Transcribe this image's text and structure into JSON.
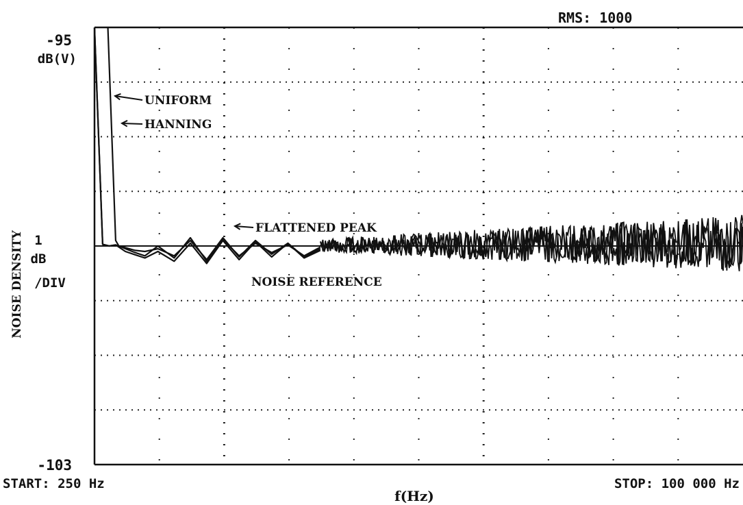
{
  "chart_data": {
    "type": "line",
    "title": "",
    "xlabel": "f(Hz)",
    "ylabel": "NOISE DENSITY",
    "xlim": [
      250,
      100000
    ],
    "ylim": [
      -103,
      -95
    ],
    "grid": true,
    "texts": {
      "rms": "RMS: 1000",
      "y_top": "-95",
      "y_top_unit": "dB(V)",
      "y_bottom": "-103",
      "scale_num": "1",
      "scale_unit1": "dB",
      "scale_unit2": "/DIV",
      "start": "START: 250 Hz",
      "stop": "STOP: 100 000 Hz"
    },
    "annotations": [
      {
        "text": "UNIFORM",
        "target": "uniform"
      },
      {
        "text": "HANNING",
        "target": "hanning"
      },
      {
        "text": "FLATTENED PEAK",
        "target": "flattened"
      },
      {
        "text": "NOISE  REFERENCE",
        "target": "reference"
      }
    ],
    "reference_level": -99.0,
    "series": [
      {
        "id": "uniform",
        "points": [
          [
            250,
            -95.0
          ],
          [
            1500,
            -98.97
          ],
          [
            2500,
            -99.0
          ],
          [
            3500,
            -98.98
          ],
          [
            4000,
            -99.0
          ],
          [
            5000,
            -99.03
          ],
          [
            6500,
            -99.08
          ],
          [
            8000,
            -99.1
          ],
          [
            10000,
            -99.05
          ],
          [
            12500,
            -99.18
          ],
          [
            15000,
            -98.9
          ],
          [
            17500,
            -99.25
          ],
          [
            20000,
            -98.85
          ],
          [
            22500,
            -99.2
          ],
          [
            25000,
            -98.9
          ],
          [
            27500,
            -99.15
          ],
          [
            30000,
            -98.95
          ],
          [
            32500,
            -99.2
          ],
          [
            35000,
            -99.05
          ]
        ]
      },
      {
        "id": "hanning",
        "points": [
          [
            250,
            -95.0
          ],
          [
            1500,
            -98.97
          ],
          [
            2500,
            -99.0
          ],
          [
            3500,
            -98.98
          ],
          [
            4000,
            -99.02
          ],
          [
            5000,
            -99.1
          ],
          [
            6500,
            -99.16
          ],
          [
            8000,
            -99.22
          ],
          [
            10000,
            -99.1
          ],
          [
            12500,
            -99.28
          ],
          [
            15000,
            -98.95
          ],
          [
            17500,
            -99.32
          ],
          [
            20000,
            -98.9
          ],
          [
            22500,
            -99.25
          ],
          [
            25000,
            -98.92
          ],
          [
            27500,
            -99.2
          ],
          [
            30000,
            -98.95
          ],
          [
            32500,
            -99.22
          ],
          [
            35000,
            -99.08
          ]
        ]
      },
      {
        "id": "flattened",
        "points": [
          [
            2000,
            -94.0
          ],
          [
            3500,
            -98.9
          ],
          [
            4000,
            -99.0
          ],
          [
            5000,
            -99.05
          ],
          [
            6500,
            -99.12
          ],
          [
            8000,
            -99.18
          ],
          [
            10000,
            -99.0
          ],
          [
            12500,
            -99.22
          ],
          [
            15000,
            -98.85
          ],
          [
            17500,
            -99.28
          ],
          [
            20000,
            -98.88
          ],
          [
            22500,
            -99.18
          ],
          [
            25000,
            -98.95
          ],
          [
            27500,
            -99.12
          ],
          [
            30000,
            -98.98
          ],
          [
            32500,
            -99.18
          ],
          [
            35000,
            -99.02
          ]
        ]
      }
    ]
  }
}
